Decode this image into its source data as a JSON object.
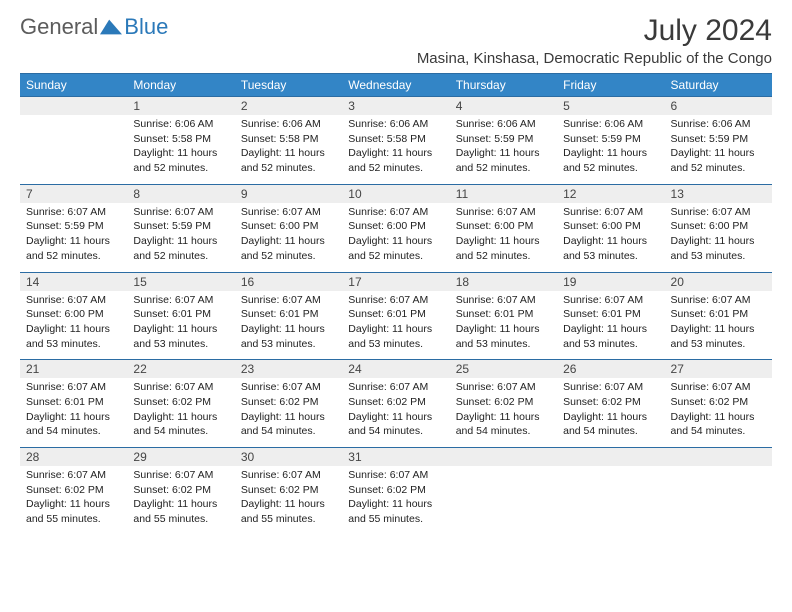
{
  "brand": {
    "text1": "General",
    "text2": "Blue"
  },
  "title": "July 2024",
  "subtitle": "Masina, Kinshasa, Democratic Republic of the Congo",
  "colors": {
    "header_bg": "#3385c6",
    "header_text": "#ffffff",
    "daynum_bg": "#eeeeee",
    "border": "#2b6ca3",
    "title_color": "#3a3a3a",
    "brand_gray": "#5c5c5c",
    "brand_blue": "#2b79b9",
    "background": "#ffffff"
  },
  "typography": {
    "title_fontsize": 30,
    "subtitle_fontsize": 15,
    "weekday_fontsize": 12,
    "daynum_fontsize": 12,
    "info_fontsize": 10.5,
    "font_family": "Arial"
  },
  "weekdays": [
    "Sunday",
    "Monday",
    "Tuesday",
    "Wednesday",
    "Thursday",
    "Friday",
    "Saturday"
  ],
  "weeks": [
    [
      {
        "n": "",
        "sr": "",
        "ss": "",
        "dl": ""
      },
      {
        "n": "1",
        "sr": "Sunrise: 6:06 AM",
        "ss": "Sunset: 5:58 PM",
        "dl": "Daylight: 11 hours and 52 minutes."
      },
      {
        "n": "2",
        "sr": "Sunrise: 6:06 AM",
        "ss": "Sunset: 5:58 PM",
        "dl": "Daylight: 11 hours and 52 minutes."
      },
      {
        "n": "3",
        "sr": "Sunrise: 6:06 AM",
        "ss": "Sunset: 5:58 PM",
        "dl": "Daylight: 11 hours and 52 minutes."
      },
      {
        "n": "4",
        "sr": "Sunrise: 6:06 AM",
        "ss": "Sunset: 5:59 PM",
        "dl": "Daylight: 11 hours and 52 minutes."
      },
      {
        "n": "5",
        "sr": "Sunrise: 6:06 AM",
        "ss": "Sunset: 5:59 PM",
        "dl": "Daylight: 11 hours and 52 minutes."
      },
      {
        "n": "6",
        "sr": "Sunrise: 6:06 AM",
        "ss": "Sunset: 5:59 PM",
        "dl": "Daylight: 11 hours and 52 minutes."
      }
    ],
    [
      {
        "n": "7",
        "sr": "Sunrise: 6:07 AM",
        "ss": "Sunset: 5:59 PM",
        "dl": "Daylight: 11 hours and 52 minutes."
      },
      {
        "n": "8",
        "sr": "Sunrise: 6:07 AM",
        "ss": "Sunset: 5:59 PM",
        "dl": "Daylight: 11 hours and 52 minutes."
      },
      {
        "n": "9",
        "sr": "Sunrise: 6:07 AM",
        "ss": "Sunset: 6:00 PM",
        "dl": "Daylight: 11 hours and 52 minutes."
      },
      {
        "n": "10",
        "sr": "Sunrise: 6:07 AM",
        "ss": "Sunset: 6:00 PM",
        "dl": "Daylight: 11 hours and 52 minutes."
      },
      {
        "n": "11",
        "sr": "Sunrise: 6:07 AM",
        "ss": "Sunset: 6:00 PM",
        "dl": "Daylight: 11 hours and 52 minutes."
      },
      {
        "n": "12",
        "sr": "Sunrise: 6:07 AM",
        "ss": "Sunset: 6:00 PM",
        "dl": "Daylight: 11 hours and 53 minutes."
      },
      {
        "n": "13",
        "sr": "Sunrise: 6:07 AM",
        "ss": "Sunset: 6:00 PM",
        "dl": "Daylight: 11 hours and 53 minutes."
      }
    ],
    [
      {
        "n": "14",
        "sr": "Sunrise: 6:07 AM",
        "ss": "Sunset: 6:00 PM",
        "dl": "Daylight: 11 hours and 53 minutes."
      },
      {
        "n": "15",
        "sr": "Sunrise: 6:07 AM",
        "ss": "Sunset: 6:01 PM",
        "dl": "Daylight: 11 hours and 53 minutes."
      },
      {
        "n": "16",
        "sr": "Sunrise: 6:07 AM",
        "ss": "Sunset: 6:01 PM",
        "dl": "Daylight: 11 hours and 53 minutes."
      },
      {
        "n": "17",
        "sr": "Sunrise: 6:07 AM",
        "ss": "Sunset: 6:01 PM",
        "dl": "Daylight: 11 hours and 53 minutes."
      },
      {
        "n": "18",
        "sr": "Sunrise: 6:07 AM",
        "ss": "Sunset: 6:01 PM",
        "dl": "Daylight: 11 hours and 53 minutes."
      },
      {
        "n": "19",
        "sr": "Sunrise: 6:07 AM",
        "ss": "Sunset: 6:01 PM",
        "dl": "Daylight: 11 hours and 53 minutes."
      },
      {
        "n": "20",
        "sr": "Sunrise: 6:07 AM",
        "ss": "Sunset: 6:01 PM",
        "dl": "Daylight: 11 hours and 53 minutes."
      }
    ],
    [
      {
        "n": "21",
        "sr": "Sunrise: 6:07 AM",
        "ss": "Sunset: 6:01 PM",
        "dl": "Daylight: 11 hours and 54 minutes."
      },
      {
        "n": "22",
        "sr": "Sunrise: 6:07 AM",
        "ss": "Sunset: 6:02 PM",
        "dl": "Daylight: 11 hours and 54 minutes."
      },
      {
        "n": "23",
        "sr": "Sunrise: 6:07 AM",
        "ss": "Sunset: 6:02 PM",
        "dl": "Daylight: 11 hours and 54 minutes."
      },
      {
        "n": "24",
        "sr": "Sunrise: 6:07 AM",
        "ss": "Sunset: 6:02 PM",
        "dl": "Daylight: 11 hours and 54 minutes."
      },
      {
        "n": "25",
        "sr": "Sunrise: 6:07 AM",
        "ss": "Sunset: 6:02 PM",
        "dl": "Daylight: 11 hours and 54 minutes."
      },
      {
        "n": "26",
        "sr": "Sunrise: 6:07 AM",
        "ss": "Sunset: 6:02 PM",
        "dl": "Daylight: 11 hours and 54 minutes."
      },
      {
        "n": "27",
        "sr": "Sunrise: 6:07 AM",
        "ss": "Sunset: 6:02 PM",
        "dl": "Daylight: 11 hours and 54 minutes."
      }
    ],
    [
      {
        "n": "28",
        "sr": "Sunrise: 6:07 AM",
        "ss": "Sunset: 6:02 PM",
        "dl": "Daylight: 11 hours and 55 minutes."
      },
      {
        "n": "29",
        "sr": "Sunrise: 6:07 AM",
        "ss": "Sunset: 6:02 PM",
        "dl": "Daylight: 11 hours and 55 minutes."
      },
      {
        "n": "30",
        "sr": "Sunrise: 6:07 AM",
        "ss": "Sunset: 6:02 PM",
        "dl": "Daylight: 11 hours and 55 minutes."
      },
      {
        "n": "31",
        "sr": "Sunrise: 6:07 AM",
        "ss": "Sunset: 6:02 PM",
        "dl": "Daylight: 11 hours and 55 minutes."
      },
      {
        "n": "",
        "sr": "",
        "ss": "",
        "dl": ""
      },
      {
        "n": "",
        "sr": "",
        "ss": "",
        "dl": ""
      },
      {
        "n": "",
        "sr": "",
        "ss": "",
        "dl": ""
      }
    ]
  ]
}
